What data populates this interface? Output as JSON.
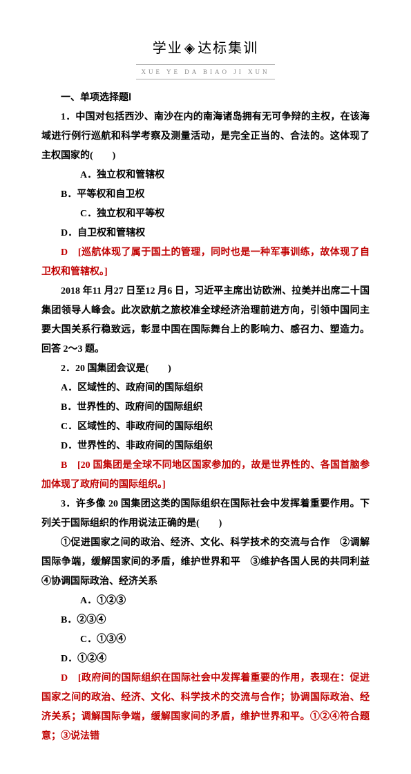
{
  "header": {
    "left": "学业",
    "right": "达标集训",
    "sub": "XUE  YE    DA BIAO JI XUN"
  },
  "section_title": "一、单项选择题Ⅰ",
  "q1": {
    "stem": "1．中国对包括西沙、南沙在内的南海诸岛拥有无可争辩的主权，在该海域进行例行巡航和科学考察及测量活动，是完全正当的、合法的。这体现了主权国家的(　　)",
    "optA": "A．独立权和管辖权",
    "optB": "B．平等权和自卫权",
    "optC": "C．独立权和平等权",
    "optD": "D．自卫权和管辖权",
    "ans_letter": "D",
    "ans_text": "　[巡航体现了属于国土的管理，同时也是一种军事训练，故体现了自卫权和管辖权。]"
  },
  "passage": "2018 年11 月27 日至12 月6 日，习近平主席出访欧洲、拉美并出席二十国集团领导人峰会。此次欧航之旅校准全球经济治理前进方向，引领中国同主要大国关系行稳致远，彰显中国在国际舞台上的影响力、感召力、塑造力。回答 2～3 题。",
  "q2": {
    "stem": "2．20 国集团会议是(　　)",
    "optA": "A．区域性的、政府间的国际组织",
    "optB": "B．世界性的、政府间的国际组织",
    "optC": "C．区域性的、非政府间的国际组织",
    "optD": "D．世界性的、非政府间的国际组织",
    "ans_letter": "B",
    "ans_text": "　[20 国集团是全球不同地区国家参加的，故是世界性的、各国首脑参加体现了政府间的国际组织。]"
  },
  "q3": {
    "stem": "3．许多像 20 国集团这类的国际组织在国际社会中发挥着重要作用。下列关于国际组织的作用说法正确的是(　　)",
    "items": "①促进国家之间的政治、经济、文化、科学技术的交流与合作　②调解国际争端，缓解国家间的矛盾，维护世界和平　③维护各国人民的共同利益　④协调国际政治、经济关系",
    "optA": "A．①②③",
    "optB": "B．②③④",
    "optC": "C．①③④",
    "optD": "D．①②④",
    "ans_letter": "D",
    "ans_text": "　[政府间的国际组织在国际社会中发挥着重要的作用，表现在：促进国家之间的政治、经济、文化、科学技术的交流与合作；协调国际政治、经济关系；调解国际争端，缓解国家间的矛盾，维护世界和平。①②④符合题意；③说法错"
  }
}
